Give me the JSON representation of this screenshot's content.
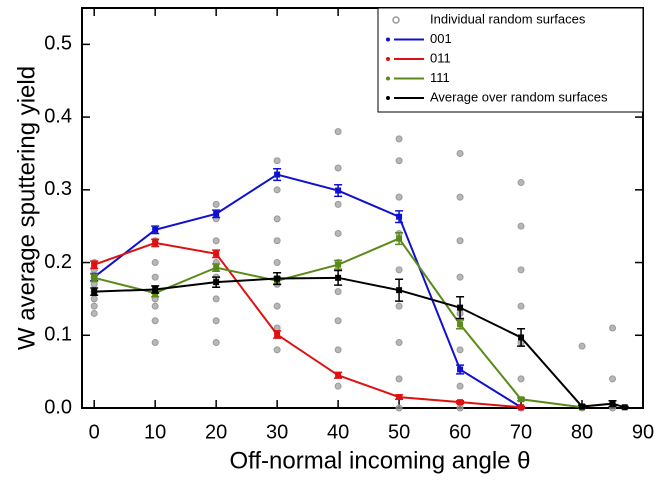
{
  "chart_data": {
    "type": "line",
    "x_label": "Off-normal incoming angle θ",
    "y_label": "W average sputtering yield",
    "xlim": [
      -2,
      90
    ],
    "ylim": [
      0,
      0.55
    ],
    "xticks": [
      0,
      10,
      20,
      30,
      40,
      50,
      60,
      70,
      80,
      90
    ],
    "yticks": [
      {
        "value": 0,
        "label": "0.0"
      },
      0.1,
      0.2,
      0.3,
      0.4,
      0.5
    ],
    "legend_location": "upper right",
    "scatter": {
      "name": "Individual random surfaces",
      "color": "#999999",
      "x": [
        0,
        0,
        0,
        0,
        0,
        0,
        0,
        0,
        10,
        10,
        10,
        10,
        10,
        10,
        10,
        10,
        20,
        20,
        20,
        20,
        20,
        20,
        20,
        20,
        30,
        30,
        30,
        30,
        30,
        30,
        30,
        30,
        30,
        40,
        40,
        40,
        40,
        40,
        40,
        40,
        40,
        40,
        50,
        50,
        50,
        50,
        50,
        50,
        50,
        50,
        50,
        60,
        60,
        60,
        60,
        60,
        60,
        60,
        60,
        70,
        70,
        70,
        70,
        70,
        70,
        70,
        80,
        80,
        85,
        85,
        85
      ],
      "values": [
        0.13,
        0.15,
        0.17,
        0.19,
        0.2,
        0.14,
        0.16,
        0.18,
        0.09,
        0.12,
        0.14,
        0.16,
        0.18,
        0.2,
        0.23,
        0.15,
        0.09,
        0.12,
        0.15,
        0.18,
        0.2,
        0.23,
        0.26,
        0.28,
        0.08,
        0.11,
        0.14,
        0.17,
        0.2,
        0.23,
        0.26,
        0.3,
        0.34,
        0.03,
        0.08,
        0.12,
        0.16,
        0.2,
        0.24,
        0.28,
        0.33,
        0.38,
        0.0,
        0.04,
        0.09,
        0.14,
        0.19,
        0.24,
        0.29,
        0.34,
        0.37,
        0.0,
        0.03,
        0.08,
        0.13,
        0.18,
        0.23,
        0.29,
        0.35,
        0.0,
        0.04,
        0.09,
        0.14,
        0.19,
        0.25,
        0.31,
        0.085,
        0.0,
        0.11,
        0.04,
        0.0
      ]
    },
    "series": [
      {
        "name": "001",
        "color": "#1010d0",
        "x": [
          0,
          10,
          20,
          30,
          40,
          50,
          60,
          70
        ],
        "values": [
          0.18,
          0.245,
          0.267,
          0.321,
          0.299,
          0.263,
          0.053,
          0.001
        ],
        "errors": [
          0.005,
          0.005,
          0.005,
          0.008,
          0.008,
          0.008,
          0.006,
          0.001
        ]
      },
      {
        "name": "011",
        "color": "#e01010",
        "x": [
          0,
          10,
          20,
          30,
          40,
          50,
          60,
          70
        ],
        "values": [
          0.197,
          0.227,
          0.212,
          0.101,
          0.045,
          0.015,
          0.008,
          0.001
        ],
        "errors": [
          0.005,
          0.005,
          0.005,
          0.005,
          0.004,
          0.003,
          0.002,
          0.001
        ]
      },
      {
        "name": "111",
        "color": "#5a8a1a",
        "x": [
          0,
          10,
          20,
          30,
          40,
          50,
          60,
          70,
          80
        ],
        "values": [
          0.179,
          0.158,
          0.193,
          0.175,
          0.197,
          0.233,
          0.115,
          0.012,
          0.001
        ],
        "errors": [
          0.005,
          0.005,
          0.005,
          0.005,
          0.006,
          0.008,
          0.006,
          0.002,
          0.001
        ]
      },
      {
        "name": "Average over random surfaces",
        "color": "#000000",
        "x": [
          0,
          10,
          20,
          30,
          40,
          50,
          60,
          70,
          80,
          85,
          87
        ],
        "values": [
          0.16,
          0.163,
          0.173,
          0.178,
          0.179,
          0.162,
          0.138,
          0.097,
          0.002,
          0.006,
          0.001
        ],
        "errors": [
          0.005,
          0.005,
          0.007,
          0.008,
          0.01,
          0.015,
          0.015,
          0.012,
          0.002,
          0.004,
          0.001
        ]
      }
    ]
  }
}
